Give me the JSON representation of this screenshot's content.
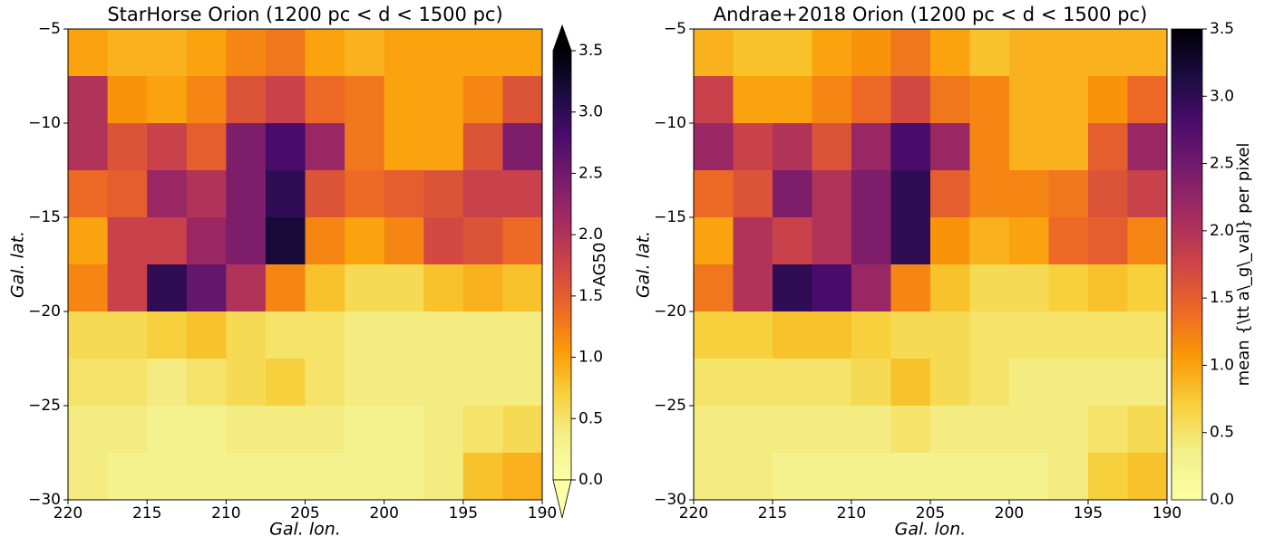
{
  "chart_data": [
    {
      "type": "heatmap",
      "title": "StarHorse Orion (1200 pc < d < 1500 pc)",
      "x_label": "Gal. lon.",
      "y_label": "Gal. lat.",
      "x": [
        218.75,
        216.25,
        213.75,
        211.25,
        208.75,
        206.25,
        203.75,
        201.25,
        198.75,
        196.25,
        193.75,
        191.25
      ],
      "y": [
        -6.25,
        -8.75,
        -11.25,
        -13.75,
        -16.25,
        -18.75,
        -21.25,
        -23.75,
        -26.25,
        -28.75
      ],
      "values": [
        [
          1.0,
          0.9,
          0.9,
          1.0,
          1.2,
          1.3,
          1.0,
          0.9,
          1.0,
          1.0,
          1.0,
          1.0
        ],
        [
          2.0,
          1.1,
          1.0,
          1.2,
          1.6,
          1.8,
          1.4,
          1.3,
          1.0,
          1.0,
          1.2,
          1.6
        ],
        [
          2.0,
          1.6,
          1.8,
          1.5,
          2.4,
          2.8,
          2.2,
          1.3,
          1.0,
          1.0,
          1.6,
          2.4
        ],
        [
          1.4,
          1.5,
          2.2,
          2.0,
          2.4,
          3.0,
          1.6,
          1.4,
          1.5,
          1.6,
          1.8,
          1.8
        ],
        [
          1.0,
          1.8,
          1.8,
          2.2,
          2.4,
          3.2,
          1.2,
          1.0,
          1.2,
          1.7,
          1.6,
          1.4
        ],
        [
          1.2,
          1.8,
          3.0,
          2.6,
          2.0,
          1.2,
          0.8,
          0.6,
          0.6,
          0.8,
          0.9,
          0.8
        ],
        [
          0.6,
          0.6,
          0.7,
          0.8,
          0.6,
          0.5,
          0.5,
          0.4,
          0.4,
          0.4,
          0.4,
          0.4
        ],
        [
          0.5,
          0.5,
          0.4,
          0.5,
          0.6,
          0.7,
          0.5,
          0.4,
          0.4,
          0.4,
          0.4,
          0.4
        ],
        [
          0.4,
          0.4,
          0.3,
          0.3,
          0.4,
          0.4,
          0.4,
          0.3,
          0.3,
          0.4,
          0.5,
          0.6
        ],
        [
          0.4,
          0.3,
          0.3,
          0.3,
          0.3,
          0.3,
          0.3,
          0.3,
          0.3,
          0.4,
          0.8,
          0.9
        ]
      ],
      "xlim": [
        220,
        190
      ],
      "ylim": [
        -30,
        -5
      ],
      "xticks": [
        220,
        215,
        210,
        205,
        200,
        195,
        190
      ],
      "yticks": [
        {
          "value": -30,
          "label": "−30"
        },
        {
          "value": -25,
          "label": "−25"
        },
        {
          "value": -20,
          "label": "−20"
        },
        {
          "value": -15,
          "label": "−15"
        },
        {
          "value": -10,
          "label": "−10"
        },
        {
          "value": -5,
          "label": "−5"
        }
      ],
      "colormap": [
        "#fcffa4",
        "#f3f08b",
        "#f7d13d",
        "#fb9b06",
        "#ed6925",
        "#cf4446",
        "#a52c60",
        "#781c6d",
        "#4a0c6b",
        "#1b0c41",
        "#000004"
      ],
      "colorbar": {
        "label": "AG50",
        "lim": [
          0,
          3.5
        ],
        "extend": "both",
        "ticks": [
          {
            "value": 0,
            "label": "0.0"
          },
          {
            "value": 0.5,
            "label": "0.5"
          },
          {
            "value": 1,
            "label": "1.0"
          },
          {
            "value": 1.5,
            "label": "1.5"
          },
          {
            "value": 2,
            "label": "2.0"
          },
          {
            "value": 2.5,
            "label": "2.5"
          },
          {
            "value": 3,
            "label": "3.0"
          },
          {
            "value": 3.5,
            "label": "3.5"
          }
        ]
      }
    },
    {
      "type": "heatmap",
      "title": "Andrae+2018 Orion (1200 pc < d < 1500 pc)",
      "x_label": "Gal. lon.",
      "y_label": "Gal. lat.",
      "x": [
        218.75,
        216.25,
        213.75,
        211.25,
        208.75,
        206.25,
        203.75,
        201.25,
        198.75,
        196.25,
        193.75,
        191.25
      ],
      "y": [
        -6.25,
        -8.75,
        -11.25,
        -13.75,
        -16.25,
        -18.75,
        -21.25,
        -23.75,
        -26.25,
        -28.75
      ],
      "values": [
        [
          0.9,
          0.8,
          0.8,
          1.0,
          1.1,
          1.3,
          1.0,
          0.8,
          0.9,
          0.9,
          0.9,
          0.9
        ],
        [
          1.8,
          1.0,
          1.0,
          1.2,
          1.4,
          1.7,
          1.3,
          1.2,
          0.9,
          0.9,
          1.1,
          1.4
        ],
        [
          2.2,
          1.8,
          2.0,
          1.6,
          2.2,
          2.8,
          2.2,
          1.2,
          0.9,
          0.9,
          1.5,
          2.2
        ],
        [
          1.4,
          1.6,
          2.4,
          2.0,
          2.4,
          3.0,
          1.5,
          1.2,
          1.2,
          1.3,
          1.6,
          1.8
        ],
        [
          1.0,
          2.0,
          1.8,
          2.0,
          2.4,
          3.0,
          1.1,
          0.9,
          1.0,
          1.4,
          1.5,
          1.2
        ],
        [
          1.3,
          2.0,
          3.0,
          2.8,
          2.2,
          1.2,
          0.8,
          0.6,
          0.6,
          0.7,
          0.8,
          0.7
        ],
        [
          0.7,
          0.7,
          0.8,
          0.8,
          0.7,
          0.6,
          0.6,
          0.5,
          0.5,
          0.5,
          0.5,
          0.5
        ],
        [
          0.5,
          0.5,
          0.5,
          0.5,
          0.6,
          0.8,
          0.6,
          0.5,
          0.4,
          0.4,
          0.4,
          0.4
        ],
        [
          0.4,
          0.4,
          0.4,
          0.4,
          0.4,
          0.5,
          0.4,
          0.4,
          0.4,
          0.4,
          0.5,
          0.6
        ],
        [
          0.4,
          0.4,
          0.3,
          0.3,
          0.3,
          0.3,
          0.3,
          0.3,
          0.3,
          0.4,
          0.7,
          0.8
        ]
      ],
      "xlim": [
        220,
        190
      ],
      "ylim": [
        -30,
        -5
      ],
      "xticks": [
        220,
        215,
        210,
        205,
        200,
        195,
        190
      ],
      "yticks": [
        {
          "value": -30,
          "label": "−30"
        },
        {
          "value": -25,
          "label": "−25"
        },
        {
          "value": -20,
          "label": "−20"
        },
        {
          "value": -15,
          "label": "−15"
        },
        {
          "value": -10,
          "label": "−10"
        },
        {
          "value": -5,
          "label": "−5"
        }
      ],
      "colormap": [
        "#fcffa4",
        "#f3f08b",
        "#f7d13d",
        "#fb9b06",
        "#ed6925",
        "#cf4446",
        "#a52c60",
        "#781c6d",
        "#4a0c6b",
        "#1b0c41",
        "#000004"
      ],
      "colorbar": {
        "label": "mean {\\tt a\\_g\\_val} per pixel",
        "lim": [
          0,
          3.5
        ],
        "extend": "neither",
        "ticks": [
          {
            "value": 0,
            "label": "0.0"
          },
          {
            "value": 0.5,
            "label": "0.5"
          },
          {
            "value": 1,
            "label": "1.0"
          },
          {
            "value": 1.5,
            "label": "1.5"
          },
          {
            "value": 2,
            "label": "2.0"
          },
          {
            "value": 2.5,
            "label": "2.5"
          },
          {
            "value": 3,
            "label": "3.0"
          },
          {
            "value": 3.5,
            "label": "3.5"
          }
        ]
      }
    }
  ]
}
